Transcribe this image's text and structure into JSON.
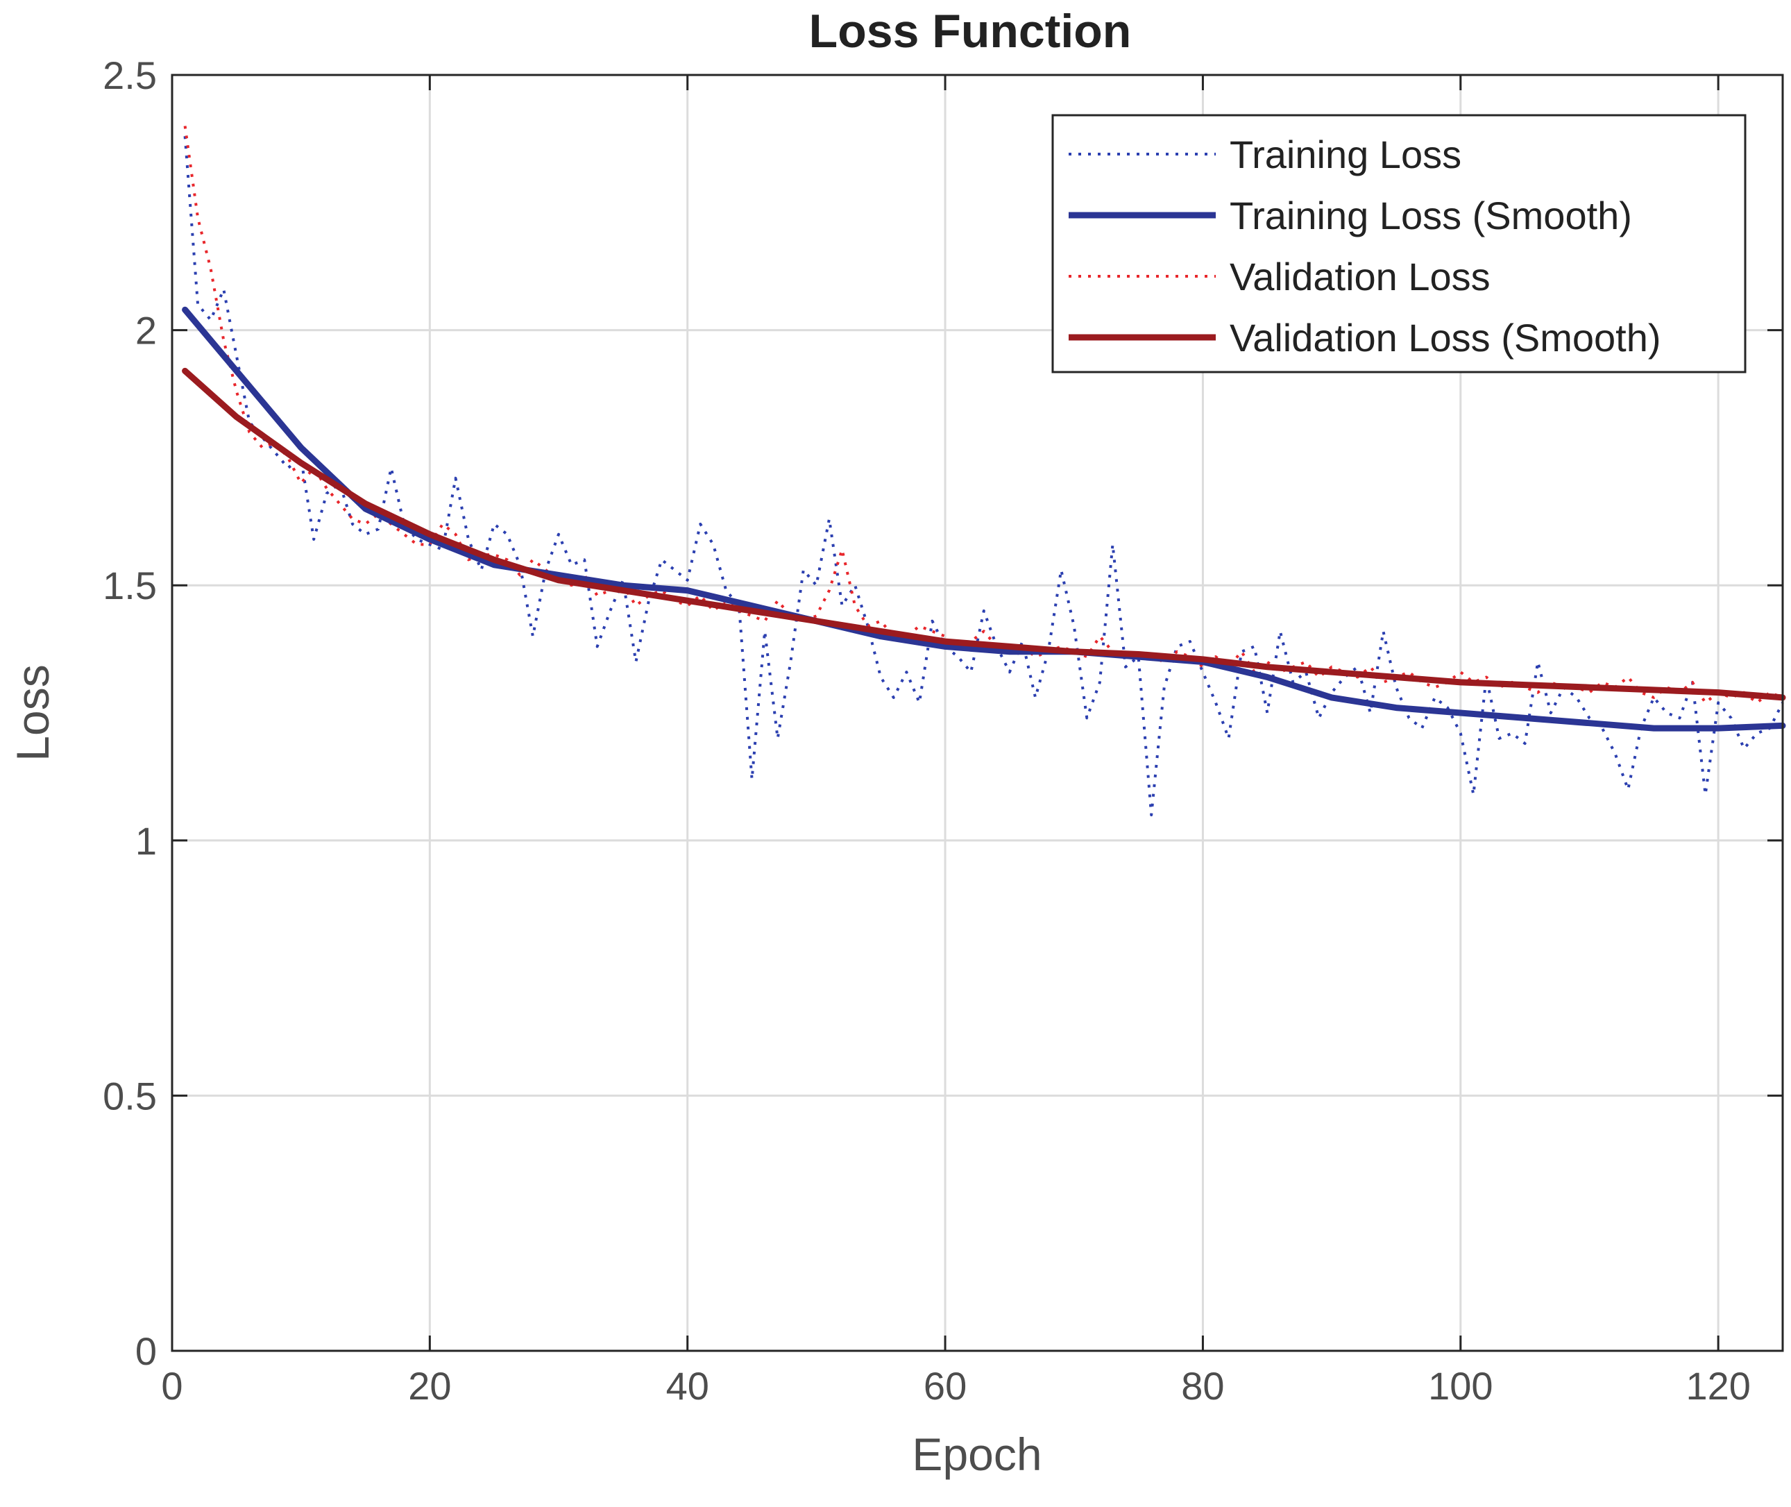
{
  "chart_data": {
    "type": "line",
    "title": "Loss Function",
    "xlabel": "Epoch",
    "ylabel": "Loss",
    "xlim": [
      0,
      125
    ],
    "ylim": [
      0,
      2.5
    ],
    "xticks": [
      0,
      20,
      40,
      60,
      80,
      100,
      120
    ],
    "yticks": [
      0,
      0.5,
      1,
      1.5,
      2,
      2.5
    ],
    "xtick_labels": [
      "0",
      "20",
      "40",
      "60",
      "80",
      "100",
      "120"
    ],
    "ytick_labels": [
      "0",
      "0.5",
      "1",
      "1.5",
      "2",
      "2.5"
    ],
    "grid": true,
    "legend_position": "top-right",
    "series": [
      {
        "name": "Training Loss",
        "style": "dotted",
        "color": "#2b3fb0",
        "x": [
          1,
          2,
          3,
          4,
          5,
          6,
          7,
          8,
          9,
          10,
          11,
          12,
          13,
          14,
          15,
          16,
          17,
          18,
          19,
          20,
          21,
          22,
          23,
          24,
          25,
          26,
          27,
          28,
          29,
          30,
          31,
          32,
          33,
          34,
          35,
          36,
          37,
          38,
          39,
          40,
          41,
          42,
          43,
          44,
          45,
          46,
          47,
          48,
          49,
          50,
          51,
          52,
          53,
          54,
          55,
          56,
          57,
          58,
          59,
          60,
          61,
          62,
          63,
          64,
          65,
          66,
          67,
          68,
          69,
          70,
          71,
          72,
          73,
          74,
          75,
          76,
          77,
          78,
          79,
          80,
          81,
          82,
          83,
          84,
          85,
          86,
          87,
          88,
          89,
          90,
          91,
          92,
          93,
          94,
          95,
          96,
          97,
          98,
          99,
          100,
          101,
          102,
          103,
          104,
          105,
          106,
          107,
          108,
          109,
          110,
          111,
          112,
          113,
          114,
          115,
          116,
          117,
          118,
          119,
          120,
          121,
          122,
          123,
          124,
          125
        ],
        "values": [
          2.38,
          2.05,
          2.02,
          2.08,
          1.95,
          1.82,
          1.79,
          1.76,
          1.73,
          1.75,
          1.59,
          1.68,
          1.7,
          1.62,
          1.6,
          1.61,
          1.73,
          1.62,
          1.59,
          1.58,
          1.57,
          1.71,
          1.59,
          1.53,
          1.62,
          1.6,
          1.54,
          1.4,
          1.53,
          1.6,
          1.54,
          1.55,
          1.38,
          1.45,
          1.51,
          1.35,
          1.47,
          1.55,
          1.53,
          1.51,
          1.62,
          1.58,
          1.49,
          1.46,
          1.12,
          1.41,
          1.2,
          1.35,
          1.53,
          1.5,
          1.63,
          1.46,
          1.5,
          1.42,
          1.32,
          1.28,
          1.33,
          1.27,
          1.43,
          1.38,
          1.36,
          1.33,
          1.45,
          1.38,
          1.33,
          1.39,
          1.28,
          1.37,
          1.53,
          1.42,
          1.24,
          1.31,
          1.58,
          1.34,
          1.36,
          1.05,
          1.3,
          1.38,
          1.39,
          1.33,
          1.27,
          1.2,
          1.37,
          1.38,
          1.25,
          1.41,
          1.31,
          1.33,
          1.24,
          1.29,
          1.32,
          1.34,
          1.25,
          1.41,
          1.3,
          1.24,
          1.22,
          1.28,
          1.26,
          1.21,
          1.09,
          1.32,
          1.2,
          1.21,
          1.19,
          1.35,
          1.25,
          1.3,
          1.28,
          1.24,
          1.22,
          1.17,
          1.1,
          1.22,
          1.28,
          1.25,
          1.24,
          1.31,
          1.09,
          1.27,
          1.24,
          1.18,
          1.21,
          1.22,
          1.27
        ]
      },
      {
        "name": "Training Loss (Smooth)",
        "style": "solid",
        "color": "#2b3594",
        "x": [
          1,
          5,
          10,
          15,
          20,
          25,
          30,
          35,
          40,
          45,
          50,
          55,
          60,
          65,
          70,
          75,
          80,
          85,
          90,
          95,
          100,
          105,
          110,
          115,
          120,
          125
        ],
        "values": [
          2.04,
          1.92,
          1.77,
          1.65,
          1.59,
          1.54,
          1.52,
          1.5,
          1.49,
          1.46,
          1.43,
          1.4,
          1.38,
          1.37,
          1.37,
          1.36,
          1.35,
          1.32,
          1.28,
          1.26,
          1.25,
          1.24,
          1.23,
          1.22,
          1.22,
          1.225
        ]
      },
      {
        "name": "Validation Loss",
        "style": "dotted",
        "color": "#e8262b",
        "x": [
          1,
          2,
          3,
          4,
          5,
          6,
          7,
          8,
          9,
          10,
          11,
          12,
          13,
          14,
          15,
          16,
          17,
          18,
          19,
          20,
          21,
          22,
          23,
          24,
          25,
          26,
          27,
          28,
          29,
          30,
          31,
          32,
          33,
          34,
          35,
          36,
          37,
          38,
          39,
          40,
          41,
          42,
          43,
          44,
          45,
          46,
          47,
          48,
          49,
          50,
          51,
          52,
          53,
          54,
          55,
          56,
          57,
          58,
          59,
          60,
          61,
          62,
          63,
          64,
          65,
          66,
          67,
          68,
          69,
          70,
          71,
          72,
          73,
          74,
          75,
          76,
          77,
          78,
          79,
          80,
          81,
          82,
          83,
          84,
          85,
          86,
          87,
          88,
          89,
          90,
          91,
          92,
          93,
          94,
          95,
          96,
          97,
          98,
          99,
          100,
          101,
          102,
          103,
          104,
          105,
          106,
          107,
          108,
          109,
          110,
          111,
          112,
          113,
          114,
          115,
          116,
          117,
          118,
          119,
          120,
          121,
          122,
          123,
          124,
          125
        ],
        "values": [
          2.4,
          2.22,
          2.12,
          1.98,
          1.88,
          1.8,
          1.77,
          1.78,
          1.75,
          1.7,
          1.73,
          1.69,
          1.66,
          1.63,
          1.62,
          1.64,
          1.62,
          1.6,
          1.58,
          1.58,
          1.62,
          1.6,
          1.55,
          1.56,
          1.56,
          1.55,
          1.52,
          1.55,
          1.53,
          1.51,
          1.5,
          1.52,
          1.48,
          1.49,
          1.5,
          1.46,
          1.48,
          1.49,
          1.47,
          1.46,
          1.48,
          1.45,
          1.47,
          1.45,
          1.44,
          1.43,
          1.47,
          1.44,
          1.43,
          1.44,
          1.49,
          1.57,
          1.46,
          1.42,
          1.43,
          1.4,
          1.4,
          1.42,
          1.41,
          1.4,
          1.38,
          1.39,
          1.41,
          1.38,
          1.38,
          1.38,
          1.36,
          1.37,
          1.38,
          1.37,
          1.36,
          1.4,
          1.37,
          1.36,
          1.37,
          1.36,
          1.35,
          1.37,
          1.36,
          1.34,
          1.36,
          1.34,
          1.37,
          1.33,
          1.35,
          1.33,
          1.34,
          1.35,
          1.32,
          1.34,
          1.33,
          1.32,
          1.34,
          1.31,
          1.32,
          1.33,
          1.31,
          1.3,
          1.31,
          1.33,
          1.31,
          1.32,
          1.3,
          1.31,
          1.3,
          1.29,
          1.31,
          1.3,
          1.3,
          1.29,
          1.31,
          1.3,
          1.32,
          1.29,
          1.28,
          1.3,
          1.29,
          1.31,
          1.27,
          1.29,
          1.28,
          1.29,
          1.27,
          1.29,
          1.28
        ]
      },
      {
        "name": "Validation Loss (Smooth)",
        "style": "solid",
        "color": "#9b1b1f",
        "x": [
          1,
          5,
          10,
          15,
          20,
          25,
          30,
          35,
          40,
          45,
          50,
          55,
          60,
          65,
          70,
          75,
          80,
          85,
          90,
          95,
          100,
          105,
          110,
          115,
          120,
          125
        ],
        "values": [
          1.92,
          1.83,
          1.74,
          1.66,
          1.6,
          1.55,
          1.51,
          1.49,
          1.47,
          1.45,
          1.43,
          1.41,
          1.39,
          1.38,
          1.37,
          1.365,
          1.355,
          1.34,
          1.33,
          1.32,
          1.31,
          1.305,
          1.3,
          1.295,
          1.29,
          1.28
        ]
      }
    ]
  }
}
